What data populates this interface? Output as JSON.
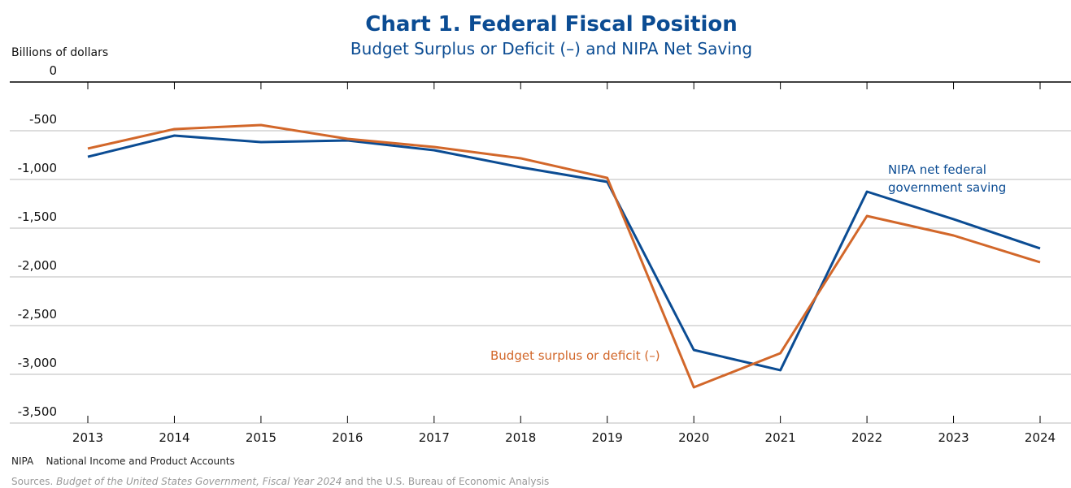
{
  "chart_data": {
    "type": "line",
    "title": "Chart 1. Federal Fiscal Position",
    "subtitle": "Budget Surplus or Deficit (–) and NIPA Net Saving",
    "y_label": "Billions of dollars",
    "categories": [
      "2013",
      "2014",
      "2015",
      "2016",
      "2017",
      "2018",
      "2019",
      "2020",
      "2021",
      "2022",
      "2023",
      "2024"
    ],
    "series": [
      {
        "name": "NIPA net federal government saving",
        "color": "#0b4c93",
        "values": [
          -767,
          -550,
          -617,
          -600,
          -700,
          -875,
          -1025,
          -2750,
          -2958,
          -1125,
          -1408,
          -1708
        ]
      },
      {
        "name": "Budget surplus or deficit (–)",
        "color": "#d2672a",
        "values": [
          -683,
          -483,
          -442,
          -583,
          -667,
          -783,
          -984,
          -3133,
          -2783,
          -1375,
          -1575,
          -1850
        ]
      }
    ],
    "ylim": [
      -3500,
      0
    ],
    "yticks": [
      0,
      -500,
      {
        "value": -1000,
        "label": "-1,000"
      },
      {
        "value": -1500,
        "label": "-1,500"
      },
      {
        "value": -2000,
        "label": "-2,000"
      },
      {
        "value": -2500,
        "label": "-2,500"
      },
      {
        "value": -3000,
        "label": "-3,000"
      },
      {
        "value": -3500,
        "label": "-3,500"
      }
    ],
    "grid": true
  },
  "notes": {
    "abbr": "NIPA",
    "abbr_text": "National Income and Product Accounts",
    "sources_lead": "Sources.",
    "sources_italic": "Budget of the United States Government, Fiscal Year 2024",
    "sources_rest": "and the U.S. Bureau of Economic Analysis"
  }
}
